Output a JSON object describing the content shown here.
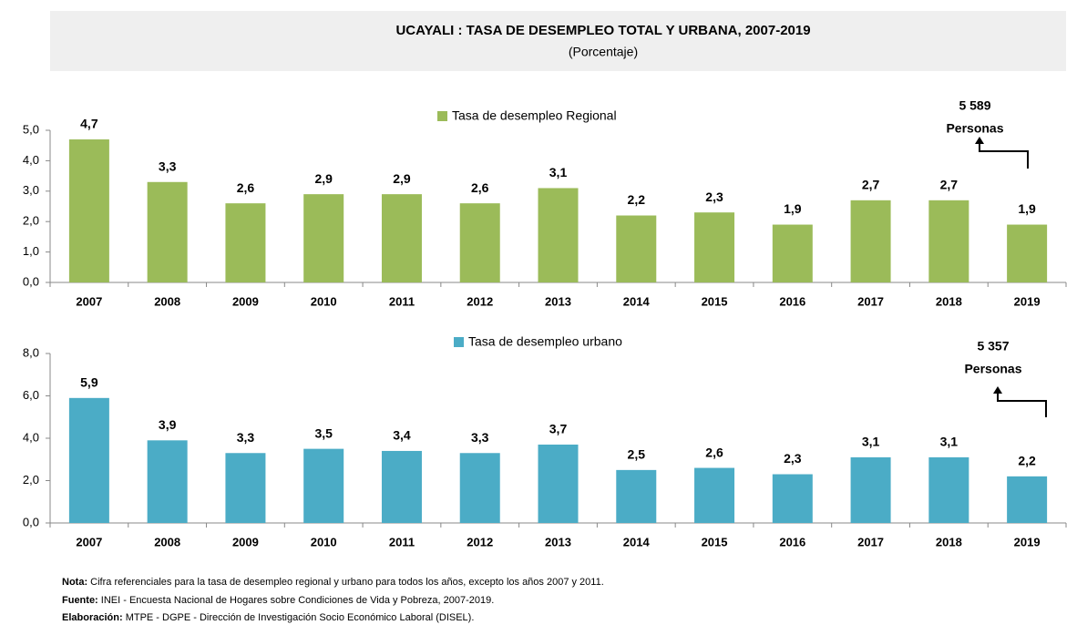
{
  "header": {
    "title": "UCAYALI : TASA DE DESEMPLEO TOTAL Y URBANA, 2007-2019",
    "subtitle": "(Porcentaje)"
  },
  "chart_data": [
    {
      "type": "bar",
      "categories": [
        "2007",
        "2008",
        "2009",
        "2010",
        "2011",
        "2012",
        "2013",
        "2014",
        "2015",
        "2016",
        "2017",
        "2018",
        "2019"
      ],
      "series": [
        {
          "name": "Tasa de desempleo Regional",
          "color": "#9bbb59",
          "values": [
            4.7,
            3.3,
            2.6,
            2.9,
            2.9,
            2.6,
            3.1,
            2.2,
            2.3,
            1.9,
            2.7,
            2.7,
            1.9
          ],
          "value_labels": [
            "4,7",
            "3,3",
            "2,6",
            "2,9",
            "2,9",
            "2,6",
            "3,1",
            "2,2",
            "2,3",
            "1,9",
            "2,7",
            "2,7",
            "1,9"
          ]
        }
      ],
      "ylim": [
        0,
        5
      ],
      "yticks": [
        {
          "value": 0,
          "label": "0,0"
        },
        {
          "value": 1,
          "label": "1,0"
        },
        {
          "value": 2,
          "label": "2,0"
        },
        {
          "value": 3,
          "label": "3,0"
        },
        {
          "value": 4,
          "label": "4,0"
        },
        {
          "value": 5,
          "label": "5,0"
        }
      ],
      "legend": "top",
      "annotations": [
        "5 589",
        "Personas"
      ]
    },
    {
      "type": "bar",
      "categories": [
        "2007",
        "2008",
        "2009",
        "2010",
        "2011",
        "2012",
        "2013",
        "2014",
        "2015",
        "2016",
        "2017",
        "2018",
        "2019"
      ],
      "series": [
        {
          "name": "Tasa de desempleo urbano",
          "color": "#4bacc6",
          "values": [
            5.9,
            3.9,
            3.3,
            3.5,
            3.4,
            3.3,
            3.7,
            2.5,
            2.6,
            2.3,
            3.1,
            3.1,
            2.2
          ],
          "value_labels": [
            "5,9",
            "3,9",
            "3,3",
            "3,5",
            "3,4",
            "3,3",
            "3,7",
            "2,5",
            "2,6",
            "2,3",
            "3,1",
            "3,1",
            "2,2"
          ]
        }
      ],
      "ylim": [
        0,
        8
      ],
      "yticks": [
        {
          "value": 0,
          "label": "0,0"
        },
        {
          "value": 2,
          "label": "2,0"
        },
        {
          "value": 4,
          "label": "4,0"
        },
        {
          "value": 6,
          "label": "6,0"
        },
        {
          "value": 8,
          "label": "8,0"
        }
      ],
      "legend": "top",
      "annotations": [
        "5 357",
        "Personas"
      ]
    }
  ],
  "notes": [
    {
      "label": "Nota:",
      "text": "Cifra referenciales para la tasa de desempleo regional y urbano para todos los años, excepto los años 2007 y 2011."
    },
    {
      "label": "Fuente:",
      "text": "INEI - Encuesta Nacional de Hogares sobre Condiciones de Vida y Pobreza, 2007-2019."
    },
    {
      "label": "Elaboración:",
      "text": "MTPE - DGPE - Dirección de Investigación Socio Económico Laboral (DISEL)."
    }
  ]
}
